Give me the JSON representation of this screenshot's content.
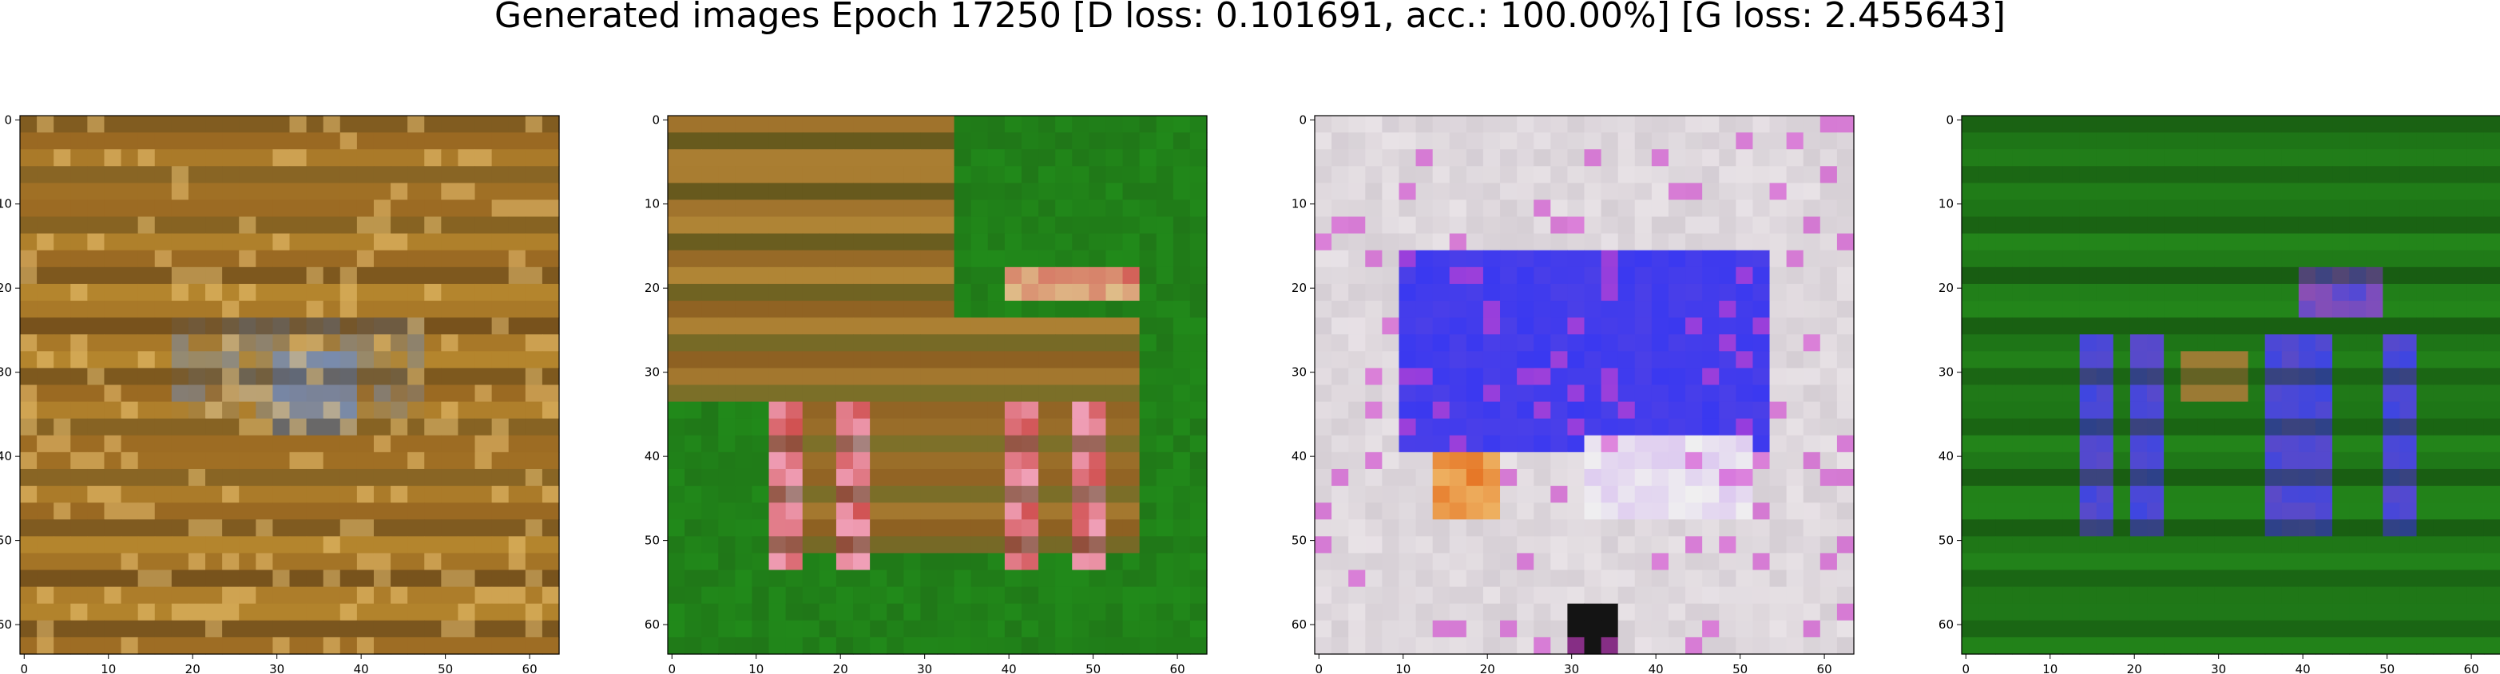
{
  "figure": {
    "title": "Generated images Epoch 17250 [D loss: 0.101691, acc.: 100.00%] [G loss: 2.455643]"
  },
  "axes": {
    "x_ticks": [
      "0",
      "10",
      "20",
      "30",
      "40",
      "50",
      "60"
    ],
    "y_ticks": [
      "0",
      "10",
      "20",
      "30",
      "40",
      "50",
      "60"
    ],
    "range": [
      0,
      64
    ]
  },
  "panels": [
    {
      "id": "image-1",
      "dominant": "#b07a28",
      "palette": [
        "#b98a2f",
        "#8c5a1c",
        "#d8b25a",
        "#e06030",
        "#6f8fc0",
        "#3a2a12",
        "#cfa24a",
        "#f0c878"
      ],
      "description_icon": "generated-image"
    },
    {
      "id": "image-2",
      "dominant": "#2f8c23",
      "palette": [
        "#218a1a",
        "#b58a38",
        "#8a5c20",
        "#e0c08a",
        "#d05050",
        "#f0a0b8",
        "#1d4a12",
        "#c9a55a"
      ],
      "description_icon": "generated-image"
    },
    {
      "id": "image-3",
      "dominant": "#d8cfcf",
      "palette": [
        "#e8e2e6",
        "#c8c0c8",
        "#3a39f0",
        "#5b45e0",
        "#d240d0",
        "#f0f0f0",
        "#7a6a6a",
        "#eeb060"
      ],
      "description_icon": "generated-image"
    },
    {
      "id": "image-4",
      "dominant": "#2a8a20",
      "palette": [
        "#23851a",
        "#1b6a15",
        "#3f46e0",
        "#5a4ac8",
        "#d07a40",
        "#0f3a0a",
        "#38a02a",
        "#9050b0"
      ],
      "description_icon": "generated-image"
    }
  ]
}
